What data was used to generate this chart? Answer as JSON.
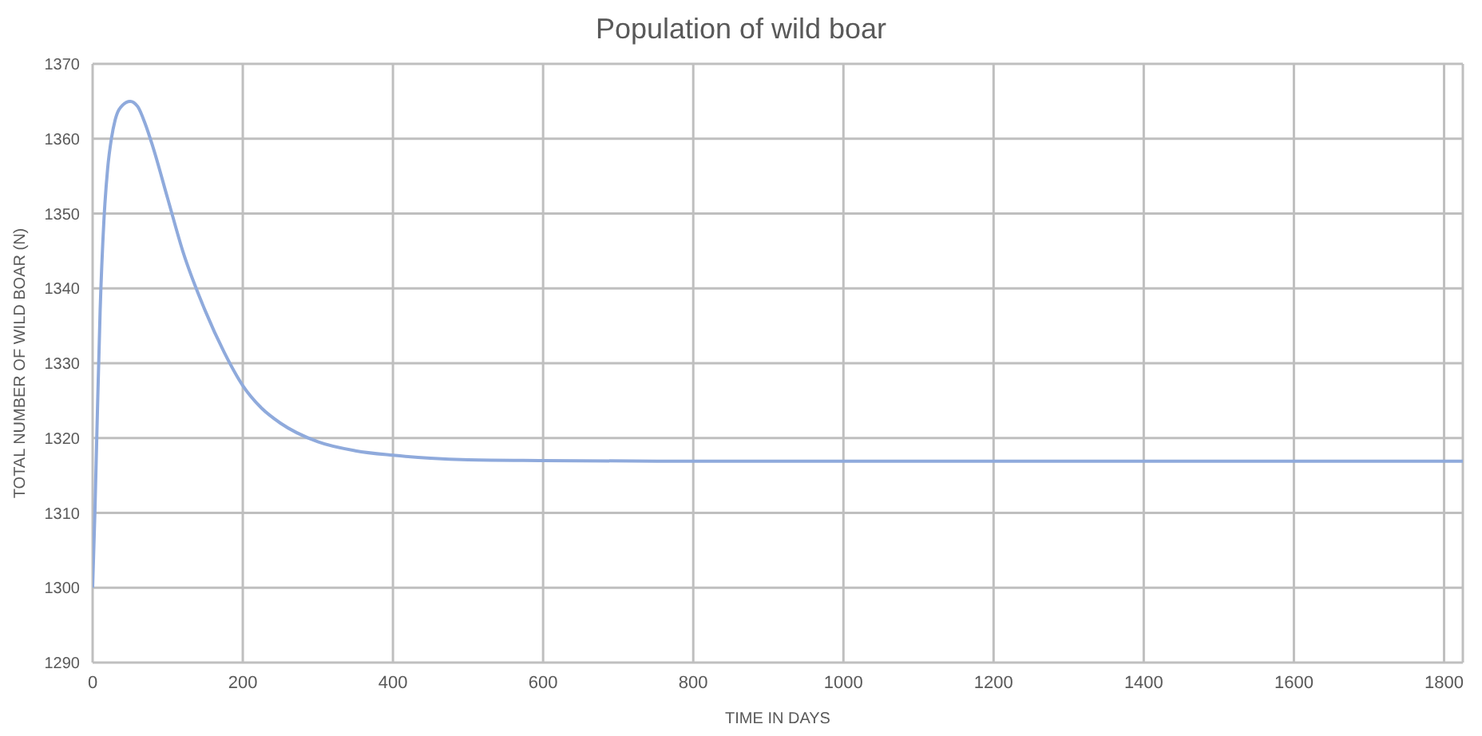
{
  "chart_data": {
    "type": "line",
    "title": "Population of wild boar",
    "xlabel": "TIME IN DAYS",
    "ylabel": "TOTAL NUMBER OF WILD BOAR (N)",
    "x": [
      0,
      3,
      6,
      10,
      15,
      20,
      25,
      30,
      40,
      50,
      60,
      70,
      80,
      100,
      120,
      150,
      175,
      200,
      225,
      250,
      300,
      350,
      400,
      450,
      500,
      600,
      800,
      1000,
      1400,
      1825
    ],
    "series": [
      {
        "color": "#8faadc",
        "values": [
          1300,
          1310,
          1322,
          1337,
          1349,
          1356,
          1360,
          1362.5,
          1364.5,
          1365,
          1364.3,
          1362,
          1359,
          1352,
          1345,
          1337,
          1331.5,
          1327,
          1324,
          1322,
          1319.5,
          1318.3,
          1317.7,
          1317.3,
          1317.1,
          1317,
          1316.9,
          1316.9,
          1316.9,
          1316.9
        ]
      }
    ],
    "xlim": [
      0,
      1825
    ],
    "xticks": [
      0,
      200,
      400,
      600,
      800,
      1000,
      1200,
      1400,
      1600,
      1800
    ],
    "ylim": [
      1290,
      1370
    ],
    "yticks": [
      1290,
      1300,
      1310,
      1320,
      1330,
      1340,
      1350,
      1360,
      1370
    ],
    "grid": true,
    "marker": "none",
    "line_style": "solid"
  }
}
